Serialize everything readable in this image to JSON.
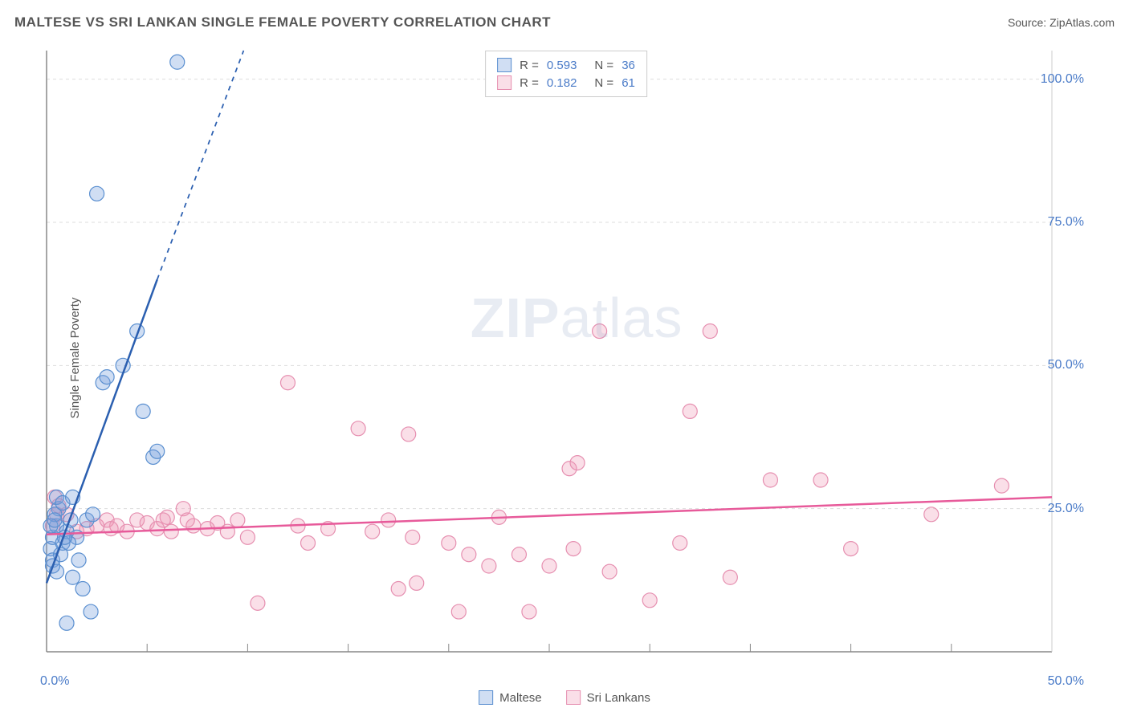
{
  "header": {
    "title": "MALTESE VS SRI LANKAN SINGLE FEMALE POVERTY CORRELATION CHART",
    "source_prefix": "Source: ",
    "source": "ZipAtlas.com"
  },
  "chart": {
    "type": "scatter",
    "ylabel": "Single Female Poverty",
    "xlim": [
      0,
      50
    ],
    "ylim": [
      0,
      105
    ],
    "x_ticks": [
      0,
      5,
      10,
      15,
      20,
      25,
      30,
      35,
      40,
      45,
      50
    ],
    "y_ticks": [
      25,
      50,
      75,
      100
    ],
    "x_tick_labels": {
      "left": "0.0%",
      "right": "50.0%"
    },
    "y_tick_labels": [
      "25.0%",
      "50.0%",
      "75.0%",
      "100.0%"
    ],
    "grid_color": "#dddddd",
    "axis_color": "#888888",
    "tick_label_color": "#4a7bc8",
    "background_color": "#ffffff",
    "watermark": {
      "text_bold": "ZIP",
      "text_light": "atlas"
    },
    "series": [
      {
        "name": "Maltese",
        "marker_fill": "rgba(120,160,220,0.35)",
        "marker_stroke": "#5a8fd0",
        "marker_radius": 9,
        "line_color": "#2b5fb0",
        "line_width": 2.5,
        "trend": {
          "x1": 0,
          "y1": 12,
          "x2": 5.5,
          "y2": 65,
          "dash_x2": 9.8,
          "dash_y2": 105
        },
        "points": [
          [
            0.2,
            18
          ],
          [
            0.3,
            20
          ],
          [
            0.5,
            22
          ],
          [
            0.6,
            25
          ],
          [
            0.4,
            24
          ],
          [
            0.8,
            19
          ],
          [
            1.0,
            21
          ],
          [
            1.2,
            23
          ],
          [
            0.3,
            16
          ],
          [
            0.5,
            14
          ],
          [
            0.7,
            17
          ],
          [
            1.3,
            13
          ],
          [
            1.8,
            11
          ],
          [
            2.2,
            7
          ],
          [
            1.0,
            5
          ],
          [
            0.5,
            27
          ],
          [
            0.8,
            26
          ],
          [
            1.3,
            27
          ],
          [
            1.5,
            20
          ],
          [
            1.1,
            19
          ],
          [
            2.0,
            23
          ],
          [
            2.3,
            24
          ],
          [
            2.8,
            47
          ],
          [
            3.0,
            48
          ],
          [
            3.8,
            50
          ],
          [
            4.8,
            42
          ],
          [
            5.3,
            34
          ],
          [
            5.5,
            35
          ],
          [
            4.5,
            56
          ],
          [
            2.5,
            80
          ],
          [
            6.5,
            103
          ],
          [
            0.2,
            22
          ],
          [
            0.4,
            23
          ],
          [
            0.9,
            20
          ],
          [
            0.3,
            15
          ],
          [
            1.6,
            16
          ]
        ]
      },
      {
        "name": "Sri Lankans",
        "marker_fill": "rgba(240,150,180,0.30)",
        "marker_stroke": "#e68fb0",
        "marker_radius": 9,
        "line_color": "#e75a9a",
        "line_width": 2.5,
        "trend": {
          "x1": 0,
          "y1": 20.5,
          "x2": 50,
          "y2": 27
        },
        "points": [
          [
            0.6,
            25.5
          ],
          [
            0.5,
            24
          ],
          [
            0.3,
            22
          ],
          [
            0.4,
            27
          ],
          [
            1.0,
            24
          ],
          [
            1.5,
            21
          ],
          [
            2.0,
            21.5
          ],
          [
            2.5,
            22
          ],
          [
            3.0,
            23
          ],
          [
            3.5,
            22
          ],
          [
            4.0,
            21
          ],
          [
            4.5,
            23
          ],
          [
            5.0,
            22.5
          ],
          [
            5.5,
            21.5
          ],
          [
            6.0,
            23.5
          ],
          [
            6.2,
            21
          ],
          [
            6.8,
            25
          ],
          [
            7.3,
            22
          ],
          [
            8.0,
            21.5
          ],
          [
            8.5,
            22.5
          ],
          [
            9.0,
            21
          ],
          [
            9.5,
            23
          ],
          [
            10.0,
            20
          ],
          [
            10.5,
            8.5
          ],
          [
            12.0,
            47
          ],
          [
            12.5,
            22
          ],
          [
            13.0,
            19
          ],
          [
            14.0,
            21.5
          ],
          [
            15.5,
            39
          ],
          [
            16.2,
            21
          ],
          [
            17.0,
            23
          ],
          [
            17.5,
            11
          ],
          [
            18.0,
            38
          ],
          [
            18.2,
            20
          ],
          [
            18.4,
            12
          ],
          [
            20.0,
            19
          ],
          [
            20.5,
            7
          ],
          [
            21.0,
            17
          ],
          [
            22.0,
            15
          ],
          [
            22.5,
            23.5
          ],
          [
            23.5,
            17
          ],
          [
            24.0,
            7
          ],
          [
            25.0,
            15
          ],
          [
            26.0,
            32
          ],
          [
            26.2,
            18
          ],
          [
            26.4,
            33
          ],
          [
            27.5,
            56
          ],
          [
            28.0,
            14
          ],
          [
            30.0,
            9
          ],
          [
            31.5,
            19
          ],
          [
            32.0,
            42
          ],
          [
            33.0,
            56
          ],
          [
            34.0,
            13
          ],
          [
            36.0,
            30
          ],
          [
            38.5,
            30
          ],
          [
            40.0,
            18
          ],
          [
            44.0,
            24
          ],
          [
            47.5,
            29
          ],
          [
            5.8,
            23
          ],
          [
            7.0,
            23
          ],
          [
            3.2,
            21.5
          ]
        ]
      }
    ],
    "correlation_box": {
      "rows": [
        {
          "swatch_fill": "rgba(120,160,220,0.35)",
          "swatch_stroke": "#5a8fd0",
          "r_label": "R =",
          "r": "0.593",
          "n_label": "N =",
          "n": "36"
        },
        {
          "swatch_fill": "rgba(240,150,180,0.30)",
          "swatch_stroke": "#e68fb0",
          "r_label": "R =",
          "r": "0.182",
          "n_label": "N =",
          "n": "61"
        }
      ]
    },
    "bottom_legend": [
      {
        "label": "Maltese",
        "fill": "rgba(120,160,220,0.35)",
        "stroke": "#5a8fd0"
      },
      {
        "label": "Sri Lankans",
        "fill": "rgba(240,150,180,0.30)",
        "stroke": "#e68fb0"
      }
    ]
  }
}
